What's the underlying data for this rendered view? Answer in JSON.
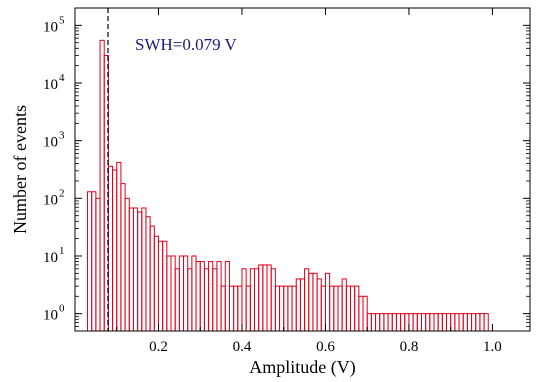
{
  "chart_data": {
    "type": "bar",
    "subtype": "histogram",
    "title": "",
    "xlabel": "Amplitude (V)",
    "ylabel": "Number of events",
    "xlim": [
      0.0,
      1.09
    ],
    "ylim": [
      0.5,
      200000
    ],
    "yscale": "log",
    "grid": false,
    "legend": "none",
    "bar_color": "#e0001a",
    "bar_width": 0.01,
    "x_ticks": [
      0.2,
      0.4,
      0.6,
      0.8,
      1.0
    ],
    "x_tick_labels": [
      "0.2",
      "0.4",
      "0.6",
      "0.8",
      "1.0"
    ],
    "y_ticks": [
      1,
      10,
      100,
      1000,
      10000,
      100000
    ],
    "y_tick_labels": [
      {
        "base": "10",
        "exp": "0"
      },
      {
        "base": "10",
        "exp": "1"
      },
      {
        "base": "10",
        "exp": "2"
      },
      {
        "base": "10",
        "exp": "3"
      },
      {
        "base": "10",
        "exp": "4"
      },
      {
        "base": "10",
        "exp": "5"
      }
    ],
    "bin_starts": [
      0.03,
      0.04,
      0.05,
      0.06,
      0.07,
      0.08,
      0.09,
      0.1,
      0.11,
      0.12,
      0.13,
      0.14,
      0.15,
      0.16,
      0.17,
      0.18,
      0.19,
      0.2,
      0.21,
      0.22,
      0.23,
      0.24,
      0.25,
      0.26,
      0.27,
      0.28,
      0.29,
      0.3,
      0.31,
      0.32,
      0.33,
      0.34,
      0.35,
      0.36,
      0.37,
      0.38,
      0.39,
      0.4,
      0.41,
      0.42,
      0.43,
      0.44,
      0.45,
      0.46,
      0.47,
      0.48,
      0.49,
      0.5,
      0.51,
      0.52,
      0.53,
      0.54,
      0.55,
      0.56,
      0.57,
      0.58,
      0.59,
      0.6,
      0.61,
      0.62,
      0.63,
      0.64,
      0.65,
      0.66,
      0.67,
      0.68,
      0.69,
      0.7,
      0.71,
      0.72,
      0.73,
      0.74,
      0.75,
      0.76,
      0.77,
      0.78,
      0.79,
      0.8,
      0.81,
      0.82,
      0.83,
      0.84,
      0.85,
      0.86,
      0.87,
      0.88,
      0.89,
      0.9,
      0.91,
      0.92,
      0.93,
      0.94,
      0.95,
      0.96,
      0.97,
      0.98
    ],
    "counts": [
      130,
      130,
      100,
      55000,
      30000,
      360,
      310,
      420,
      180,
      100,
      68,
      68,
      58,
      68,
      48,
      33,
      22,
      18,
      18,
      10,
      10,
      6,
      10,
      10,
      6,
      10,
      8,
      8,
      6,
      8,
      6,
      8,
      3,
      8,
      3,
      3,
      3,
      6,
      3,
      6,
      6,
      7,
      7,
      7,
      6,
      3,
      3,
      3,
      3,
      3,
      4,
      4,
      6,
      5,
      5,
      4,
      3,
      5,
      3,
      3,
      3,
      4,
      3,
      3,
      3,
      2,
      2,
      1,
      1,
      1,
      1,
      1,
      1,
      1,
      1,
      1,
      1,
      1,
      1,
      1,
      1,
      1,
      1,
      1,
      1,
      1,
      1,
      1,
      1,
      1,
      1,
      1,
      1,
      1,
      1,
      1
    ],
    "reference_line": {
      "x": 0.079,
      "style": "dashed",
      "color": "#000000"
    },
    "annotation": {
      "text": "SWH=0.079 V",
      "color": "#1a1a7a"
    }
  }
}
